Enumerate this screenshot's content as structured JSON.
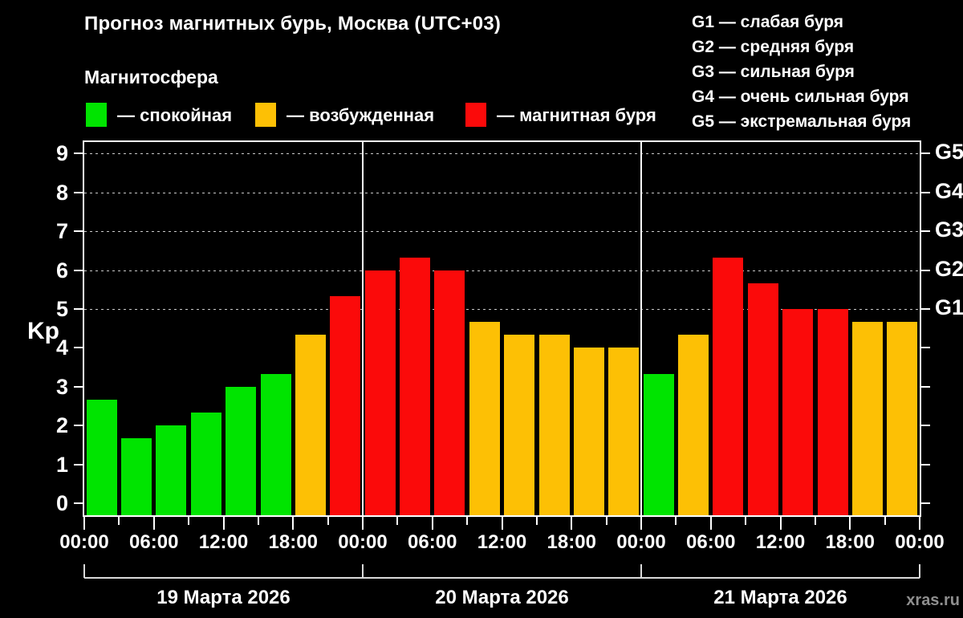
{
  "colors": {
    "quiet": "#00e400",
    "excited": "#fdc005",
    "storm": "#fb0a0a",
    "axis": "#ffffff",
    "grid": "#c9c9c9",
    "bracket": "#d9d9d9",
    "text": "#ffffff",
    "watermark": "#8f8f8f",
    "background": "#000000"
  },
  "legend": {
    "items": [
      {
        "state": "quiet",
        "label": "— спокойная"
      },
      {
        "state": "excited",
        "label": "— возбужденная"
      },
      {
        "state": "storm",
        "label": "— магнитная буря"
      }
    ]
  },
  "g_legend": {
    "items": [
      {
        "code": "G1",
        "label": " — слабая буря"
      },
      {
        "code": "G2",
        "label": " — средняя буря"
      },
      {
        "code": "G3",
        "label": " — сильная буря"
      },
      {
        "code": "G4",
        "label": " — очень сильная буря"
      },
      {
        "code": "G5",
        "label": " — экстремальная буря"
      }
    ]
  },
  "watermark": "xras.ru",
  "chart_data": {
    "type": "bar",
    "title": "Прогноз магнитных бурь, Москва (UTC+03)",
    "subtitle": "Магнитосфера",
    "ylabel": "Kp",
    "ylim": [
      0,
      9.4
    ],
    "yticks": [
      0,
      1,
      2,
      3,
      4,
      5,
      6,
      7,
      8,
      9
    ],
    "grid_levels": [
      5,
      6,
      7,
      8,
      9
    ],
    "grid_style": "dashed",
    "legend_position": "top",
    "right_axis": {
      "labels": [
        "G1",
        "G2",
        "G3",
        "G4",
        "G5"
      ],
      "levels": [
        5,
        6,
        7,
        8,
        9
      ]
    },
    "x_tick_labels": [
      "00:00",
      "06:00",
      "12:00",
      "18:00",
      "00:00",
      "06:00",
      "12:00",
      "18:00",
      "00:00",
      "06:00",
      "12:00",
      "18:00",
      "00:00"
    ],
    "bars_per_day": 8,
    "days": [
      {
        "date": "19 Марта 2026",
        "values": [
          2.67,
          1.67,
          2.0,
          2.33,
          3.0,
          3.33,
          4.33,
          5.33
        ],
        "states": [
          "quiet",
          "quiet",
          "quiet",
          "quiet",
          "quiet",
          "quiet",
          "excited",
          "storm"
        ]
      },
      {
        "date": "20 Марта 2026",
        "values": [
          6.0,
          6.33,
          6.0,
          4.67,
          4.33,
          4.33,
          4.0,
          4.0
        ],
        "states": [
          "storm",
          "storm",
          "storm",
          "excited",
          "excited",
          "excited",
          "excited",
          "excited"
        ]
      },
      {
        "date": "21 Марта 2026",
        "values": [
          3.33,
          4.33,
          6.33,
          5.67,
          5.0,
          5.0,
          4.67,
          4.67
        ],
        "states": [
          "quiet",
          "excited",
          "storm",
          "storm",
          "storm",
          "storm",
          "excited",
          "excited"
        ]
      }
    ]
  }
}
